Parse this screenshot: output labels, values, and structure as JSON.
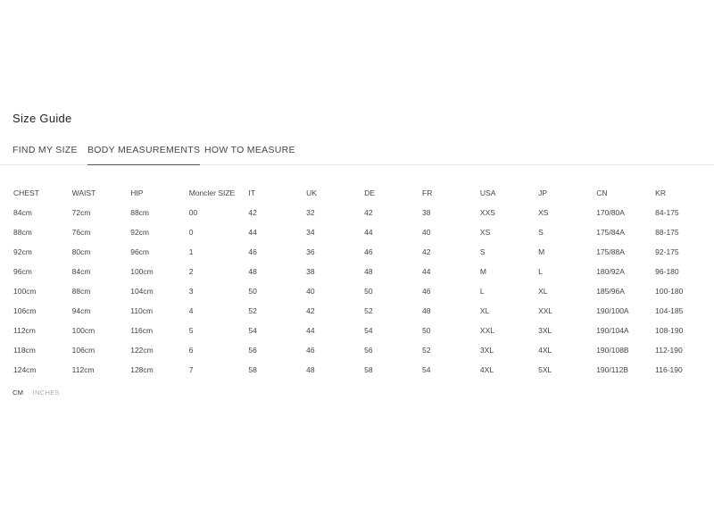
{
  "title": "Size Guide",
  "tabs": [
    {
      "label": "FIND MY SIZE",
      "active": false
    },
    {
      "label": "BODY MEASUREMENTS",
      "active": true
    },
    {
      "label": "HOW TO MEASURE",
      "active": false
    }
  ],
  "table": {
    "headers": [
      "CHEST",
      "WAIST",
      "HIP",
      "Moncler SIZE",
      "IT",
      "UK",
      "DE",
      "FR",
      "USA",
      "JP",
      "CN",
      "KR"
    ],
    "rows": [
      [
        "84cm",
        "72cm",
        "88cm",
        "00",
        "42",
        "32",
        "42",
        "38",
        "XXS",
        "XS",
        "170/80A",
        "84-175"
      ],
      [
        "88cm",
        "76cm",
        "92cm",
        "0",
        "44",
        "34",
        "44",
        "40",
        "XS",
        "S",
        "175/84A",
        "88-175"
      ],
      [
        "92cm",
        "80cm",
        "96cm",
        "1",
        "46",
        "36",
        "46",
        "42",
        "S",
        "M",
        "175/88A",
        "92-175"
      ],
      [
        "96cm",
        "84cm",
        "100cm",
        "2",
        "48",
        "38",
        "48",
        "44",
        "M",
        "L",
        "180/92A",
        "96-180"
      ],
      [
        "100cm",
        "88cm",
        "104cm",
        "3",
        "50",
        "40",
        "50",
        "46",
        "L",
        "XL",
        "185/96A",
        "100-180"
      ],
      [
        "106cm",
        "94cm",
        "110cm",
        "4",
        "52",
        "42",
        "52",
        "48",
        "XL",
        "XXL",
        "190/100A",
        "104-185"
      ],
      [
        "112cm",
        "100cm",
        "116cm",
        "5",
        "54",
        "44",
        "54",
        "50",
        "XXL",
        "3XL",
        "190/104A",
        "108-190"
      ],
      [
        "118cm",
        "106cm",
        "122cm",
        "6",
        "56",
        "46",
        "56",
        "52",
        "3XL",
        "4XL",
        "190/108B",
        "112-190"
      ],
      [
        "124cm",
        "112cm",
        "128cm",
        "7",
        "58",
        "48",
        "58",
        "54",
        "4XL",
        "5XL",
        "190/112B",
        "116-190"
      ]
    ]
  },
  "units": {
    "cm": "CM",
    "inches": "INCHES",
    "selected": "CM"
  }
}
